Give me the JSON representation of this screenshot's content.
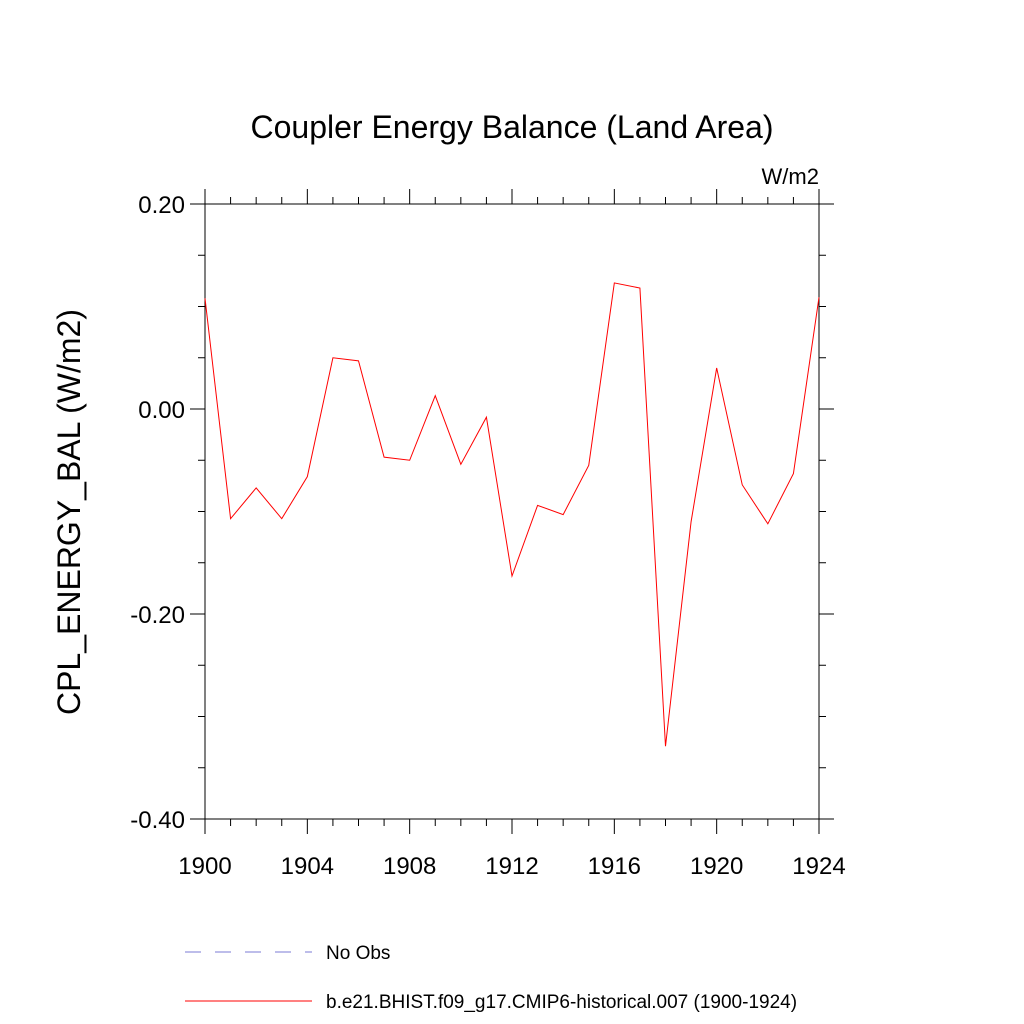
{
  "chart_data": {
    "type": "line",
    "title": "Coupler Energy Balance (Land Area)",
    "units": "W/m2",
    "ylabel": "CPL_ENERGY_BAL  (W/m2)",
    "x": [
      1900,
      1901,
      1902,
      1903,
      1904,
      1905,
      1906,
      1907,
      1908,
      1909,
      1910,
      1911,
      1912,
      1913,
      1914,
      1915,
      1916,
      1917,
      1918,
      1919,
      1920,
      1921,
      1922,
      1923,
      1924
    ],
    "series": [
      {
        "name": "b.e21.BHIST.f09_g17.CMIP6-historical.007 (1900-1924)",
        "color": "#ff0000",
        "values": [
          0.108,
          -0.107,
          -0.077,
          -0.107,
          -0.066,
          0.05,
          0.047,
          -0.047,
          -0.05,
          0.013,
          -0.054,
          -0.008,
          -0.163,
          -0.094,
          -0.103,
          -0.055,
          0.123,
          0.118,
          -0.329,
          -0.11,
          0.04,
          -0.074,
          -0.112,
          -0.063,
          0.109
        ]
      }
    ],
    "legend_extra": [
      {
        "name": "No Obs",
        "color": "#7b7bd6",
        "style": "dashed"
      }
    ],
    "xlim": [
      1900,
      1924
    ],
    "xticks": [
      1900,
      1904,
      1908,
      1912,
      1916,
      1920,
      1924
    ],
    "ylim": [
      -0.4,
      0.2
    ],
    "yticks": [
      {
        "value": 0.2,
        "label": "0.20"
      },
      {
        "value": 0,
        "label": "0.00"
      },
      {
        "value": -0.2,
        "label": "-0.20"
      },
      {
        "value": -0.4,
        "label": "-0.40"
      }
    ],
    "yminorticks": [
      0.15,
      0.1,
      0.05,
      -0.05,
      -0.1,
      -0.15,
      -0.25,
      -0.3,
      -0.35
    ],
    "grid": false
  }
}
